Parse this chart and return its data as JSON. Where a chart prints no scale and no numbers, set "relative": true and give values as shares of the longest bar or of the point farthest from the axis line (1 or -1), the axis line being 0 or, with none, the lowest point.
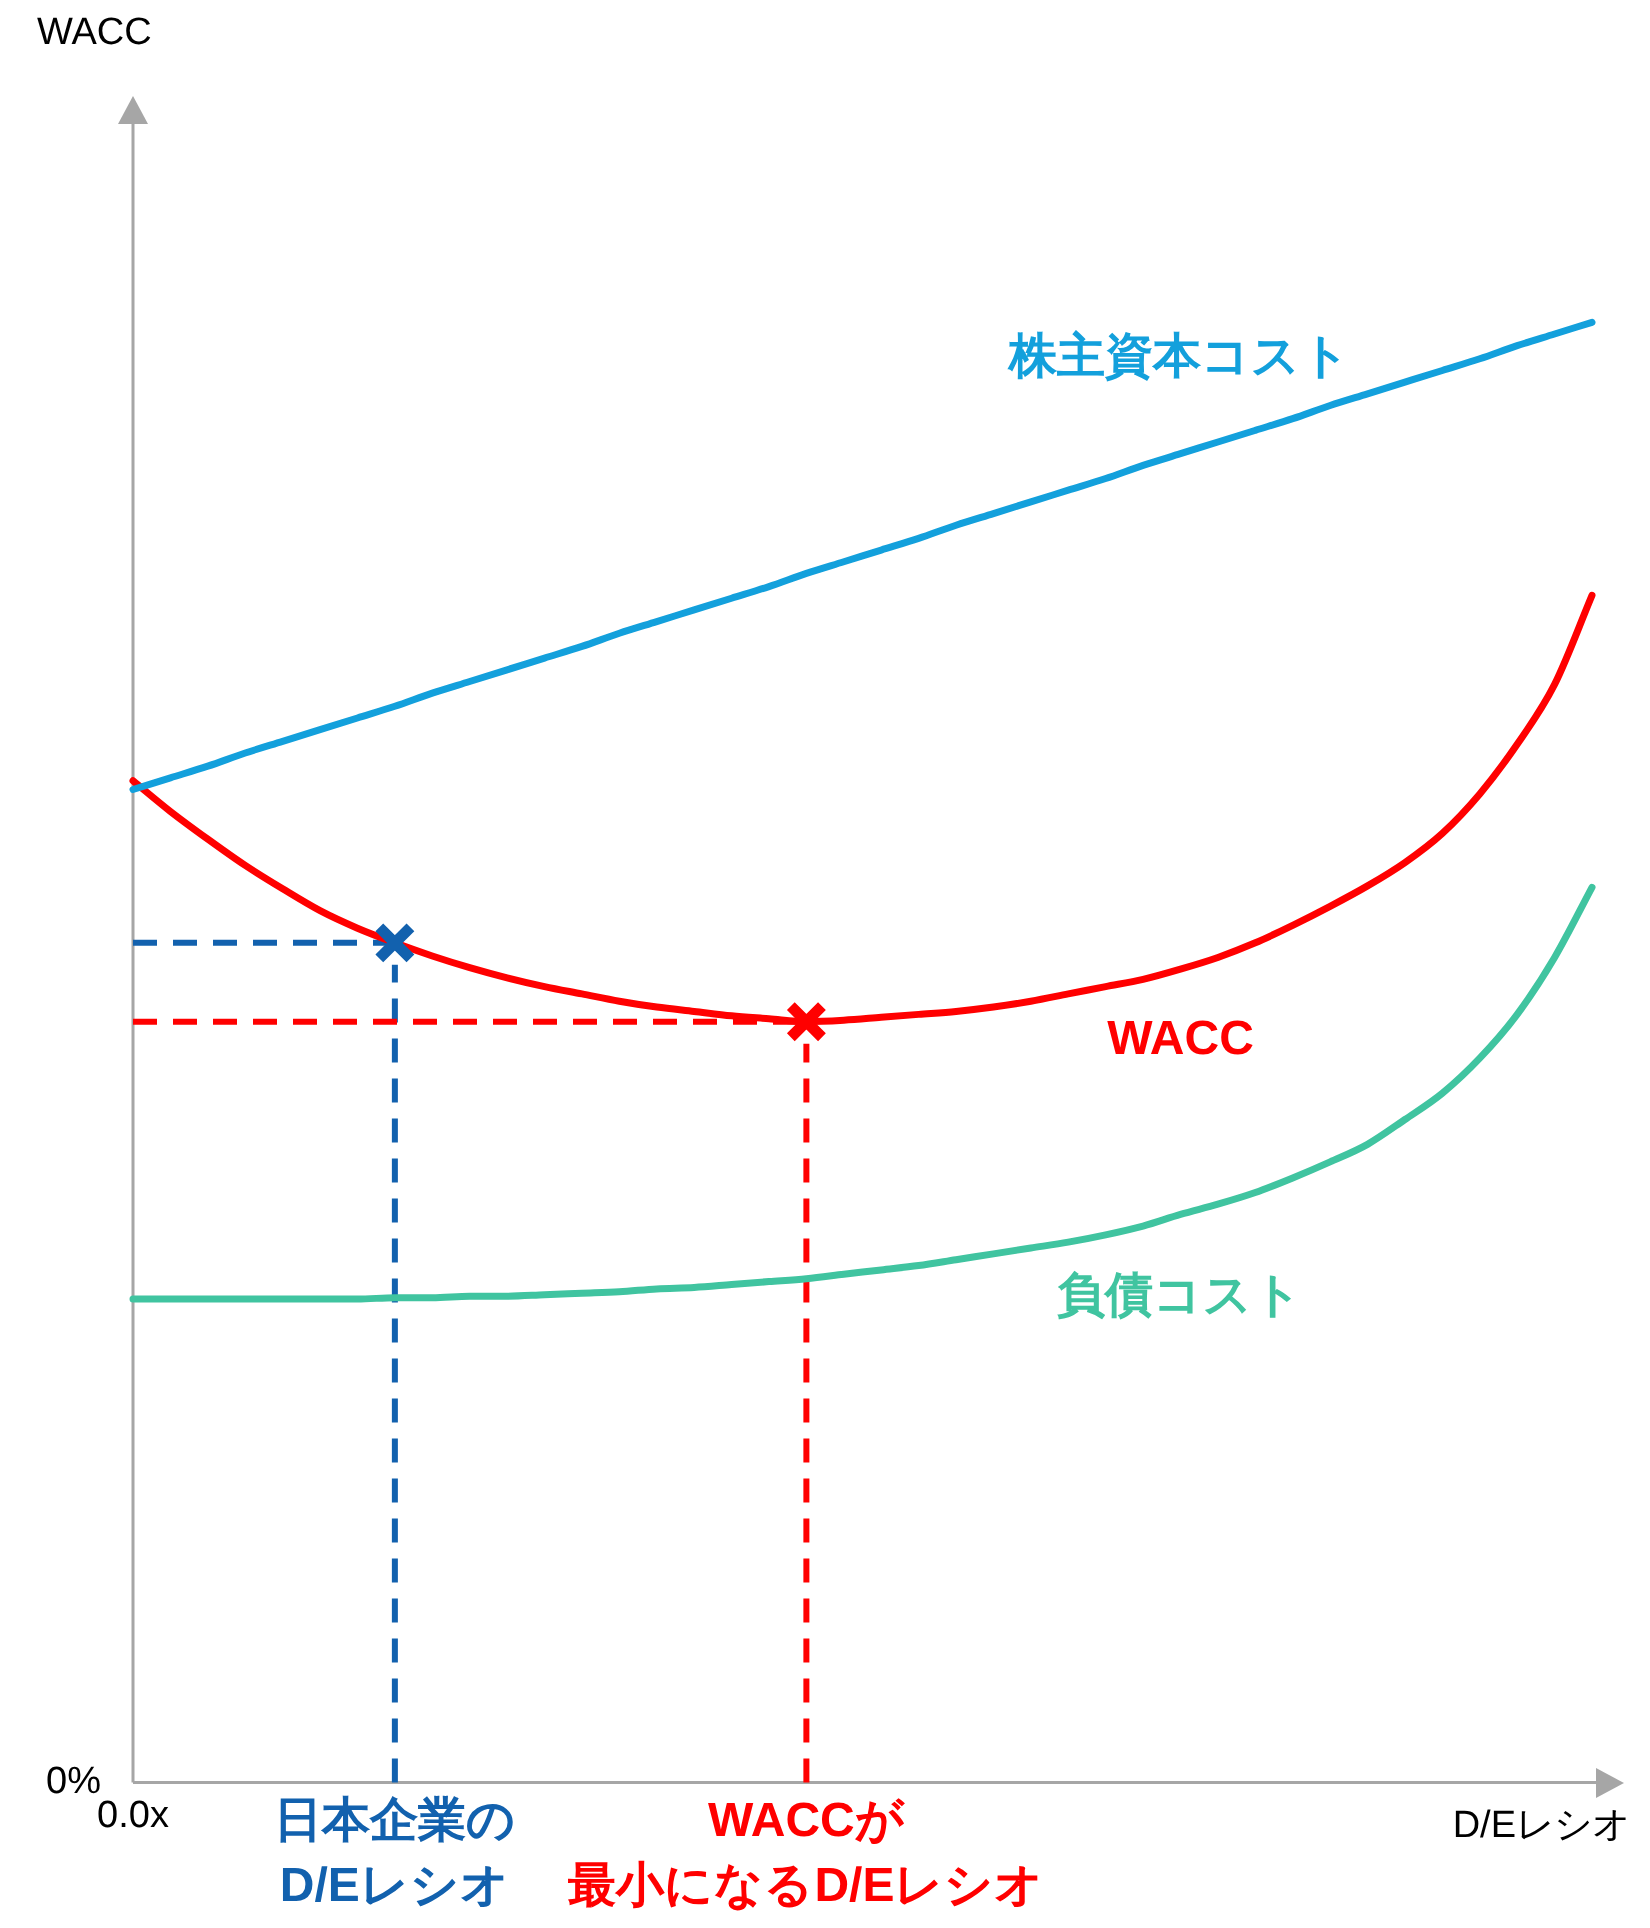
{
  "chart_data": {
    "type": "line",
    "relative": true,
    "xlabel": "D/Eレシオ",
    "categories": [
      "0.0x",
      null,
      null,
      null,
      null,
      null,
      null,
      "日本企業のD/Eレシオ",
      null,
      null,
      null,
      null,
      null,
      null,
      null,
      null,
      null,
      null,
      "WACCが最小になるD/Eレシオ",
      null,
      null,
      null,
      null,
      null,
      null,
      null,
      null,
      null,
      null,
      null,
      null,
      null,
      null,
      null,
      null,
      null,
      null,
      null,
      null,
      null
    ],
    "series": [
      {
        "name": "株主資本コスト",
        "color": "#13a0dc",
        "values": [
          0.68,
          0.688,
          0.696,
          0.705,
          0.713,
          0.721,
          0.729,
          0.737,
          0.746,
          0.754,
          0.762,
          0.77,
          0.778,
          0.787,
          0.795,
          0.803,
          0.811,
          0.819,
          0.828,
          0.836,
          0.844,
          0.852,
          0.861,
          0.869,
          0.877,
          0.885,
          0.893,
          0.902,
          0.91,
          0.918,
          0.926,
          0.934,
          0.943,
          0.951,
          0.959,
          0.967,
          0.975,
          0.984,
          0.992,
          1.0
        ]
      },
      {
        "name": "WACC",
        "color": "#ff0000",
        "values": [
          0.686,
          0.665,
          0.646,
          0.628,
          0.612,
          0.597,
          0.585,
          0.575,
          0.566,
          0.558,
          0.551,
          0.545,
          0.54,
          0.535,
          0.531,
          0.528,
          0.525,
          0.523,
          0.521,
          0.522,
          0.524,
          0.526,
          0.528,
          0.531,
          0.535,
          0.54,
          0.545,
          0.55,
          0.557,
          0.565,
          0.575,
          0.587,
          0.6,
          0.614,
          0.63,
          0.65,
          0.677,
          0.711,
          0.752,
          0.813
        ]
      },
      {
        "name": "負債コスト",
        "color": "#40c4a0",
        "values": [
          0.331,
          0.331,
          0.331,
          0.331,
          0.331,
          0.331,
          0.331,
          0.332,
          0.332,
          0.333,
          0.333,
          0.334,
          0.335,
          0.336,
          0.338,
          0.339,
          0.341,
          0.343,
          0.345,
          0.348,
          0.351,
          0.354,
          0.358,
          0.362,
          0.366,
          0.37,
          0.375,
          0.381,
          0.389,
          0.396,
          0.404,
          0.414,
          0.425,
          0.437,
          0.454,
          0.472,
          0.496,
          0.526,
          0.565,
          0.613
        ]
      },
      {
        "type": "scatter",
        "marker": "cross",
        "color": "#1261ae",
        "values": [
          null,
          null,
          null,
          null,
          null,
          null,
          null,
          0.575,
          null,
          null,
          null,
          null,
          null,
          null,
          null,
          null,
          null,
          null,
          null,
          null,
          null,
          null,
          null,
          null,
          null,
          null,
          null,
          null,
          null,
          null,
          null,
          null,
          null,
          null,
          null,
          null,
          null,
          null,
          null,
          null
        ]
      },
      {
        "type": "scatter",
        "marker": "cross",
        "color": "#ff0000",
        "values": [
          null,
          null,
          null,
          null,
          null,
          null,
          null,
          null,
          null,
          null,
          null,
          null,
          null,
          null,
          null,
          null,
          null,
          null,
          0.521,
          null,
          null,
          null,
          null,
          null,
          null,
          null,
          null,
          null,
          null,
          null,
          null,
          null,
          null,
          null,
          null,
          null,
          null,
          null,
          null,
          null
        ]
      }
    ],
    "ref_lines": [
      {
        "axis": "x",
        "value": "日本企業のD/Eレシオ",
        "color": "#1261ae",
        "line_style": "dashed"
      },
      {
        "axis": "x",
        "value": "WACCが最小になるD/Eレシオ",
        "color": "#ff0000",
        "line_style": "dashed"
      },
      {
        "axis": "y",
        "value": 0.575,
        "color": "#1261ae",
        "line_style": "dashed"
      },
      {
        "axis": "y",
        "value": 0.521,
        "color": "#ff0000",
        "line_style": "dashed"
      }
    ],
    "annotations": [
      "WACC",
      "0%"
    ]
  }
}
